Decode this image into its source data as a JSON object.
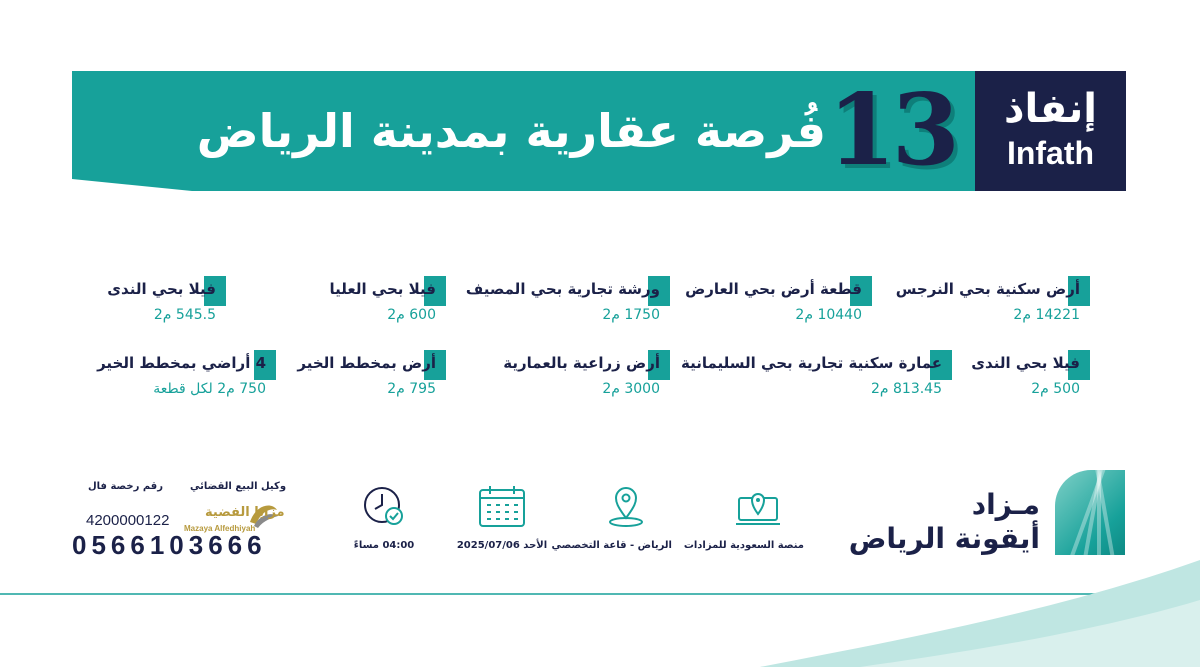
{
  "header": {
    "title": "فُرصة عقارية بمدينة الرياض",
    "count": "13",
    "logo_ar": "إنفاذ",
    "logo_en": "Infath"
  },
  "items": [
    {
      "title": "أرض سكنية بحي  النرجس",
      "area": "14221 م2"
    },
    {
      "title": "قطعة أرض بحي العارض",
      "area": "10440 م2"
    },
    {
      "title": "ورشة تجارية بحي المصيف",
      "area": "1750 م2"
    },
    {
      "title": "فيلا بحي العليا",
      "area": "600 م2"
    },
    {
      "title": "فيلا بحي الندى",
      "area": "545.5 م2"
    },
    {
      "title": "فيلا بحي الندى",
      "area": "500 م2"
    },
    {
      "title": "عمارة سكنية تجارية بحي السليمانية",
      "area": "813.45 م2"
    },
    {
      "title": "أرض زراعية بالعمارية",
      "area": "3000 م2"
    },
    {
      "title": "أرض بمخطط الخير",
      "area": "795 م2"
    },
    {
      "title": "4 أراضي بمخطط الخير",
      "area": "750 م2 لكل قطعة"
    }
  ],
  "footer": {
    "mazad_line1": "مـزاد",
    "mazad_line2": "أيقونة الرياض",
    "platform": "منصة السعودية للمزادات",
    "location": "الرياض - قاعة التخصصي",
    "date": "الأحد   2025/07/06",
    "time": "04:00 مساءً",
    "agent_label": "وكيل البيع القضائي",
    "license_label": "رقم رخصة فال",
    "license_number": "4200000122",
    "phone": "0566103666",
    "agent_name_ar": "مزايا الفضية",
    "agent_name_en": "Mazaya Alfedhiyah"
  },
  "colors": {
    "teal": "#17a19a",
    "navy": "#1b2148",
    "gold": "#b79a3e"
  },
  "icons": [
    "laptop-location-icon",
    "map-pin-icon",
    "calendar-icon",
    "clock-icon"
  ]
}
